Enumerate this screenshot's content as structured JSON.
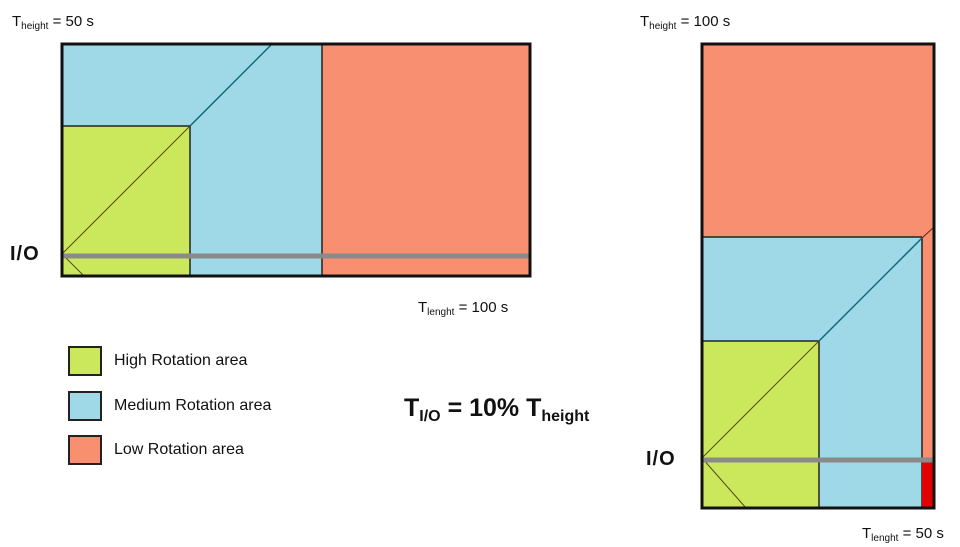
{
  "colors": {
    "high": "#cbe85c",
    "medium": "#9fd8e7",
    "low": "#f78f70",
    "io_line": "#8a8a8a",
    "diagonal": "#0b6b78",
    "highlight": "#e00000",
    "border": "#111111"
  },
  "left_rack": {
    "height_label": {
      "prefix": "T",
      "sub": "height",
      "value": "= 50 s"
    },
    "length_label": {
      "prefix": "T",
      "sub": "lenght",
      "value": "= 100 s"
    },
    "io_label": "I/O"
  },
  "right_rack": {
    "height_label": {
      "prefix": "T",
      "sub": "height",
      "value": "= 100 s"
    },
    "length_label": {
      "prefix": "T",
      "sub": "lenght",
      "value": "= 50 s"
    },
    "io_label": "I/O"
  },
  "legend": [
    {
      "label": "High Rotation area",
      "color": "#cbe85c"
    },
    {
      "label": "Medium Rotation area",
      "color": "#9fd8e7"
    },
    {
      "label": "Low Rotation area",
      "color": "#f78f70"
    }
  ],
  "formula": {
    "t": "T",
    "t_sub": "I/O",
    "eq": " = 10% T",
    "h_sub": "height"
  }
}
